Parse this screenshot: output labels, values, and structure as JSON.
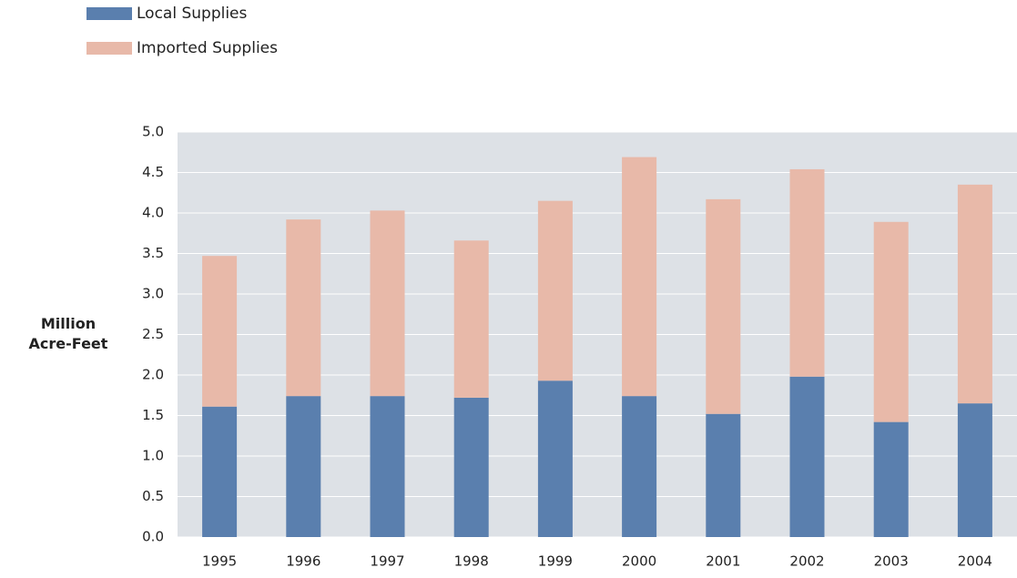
{
  "chart_data": {
    "type": "stacked_bar",
    "y_label": "Million Acre-Feet",
    "categories": [
      "1995",
      "1996",
      "1997",
      "1998",
      "1999",
      "2000",
      "2001",
      "2002",
      "2003",
      "2004"
    ],
    "series": [
      {
        "name": "Local Supplies",
        "color": "#5a7fae",
        "values": [
          1.61,
          1.74,
          1.74,
          1.72,
          1.93,
          1.74,
          1.52,
          1.98,
          1.42,
          1.65
        ]
      },
      {
        "name": "Imported Supplies",
        "color": "#e8b9a9",
        "values": [
          1.86,
          2.18,
          2.29,
          1.94,
          2.22,
          2.95,
          2.65,
          2.56,
          2.47,
          2.7
        ]
      }
    ],
    "ylim": [
      0,
      5
    ],
    "yticks": [
      {
        "value": 0,
        "label": "0.0"
      },
      0.5,
      {
        "value": 1,
        "label": "1.0"
      },
      1.5,
      {
        "value": 2,
        "label": "2.0"
      },
      2.5,
      {
        "value": 3,
        "label": "3.0"
      },
      3.5,
      {
        "value": 4,
        "label": "4.0"
      },
      4.5,
      {
        "value": 5,
        "label": "5.0"
      }
    ],
    "grid": true,
    "legend": "top-left"
  }
}
